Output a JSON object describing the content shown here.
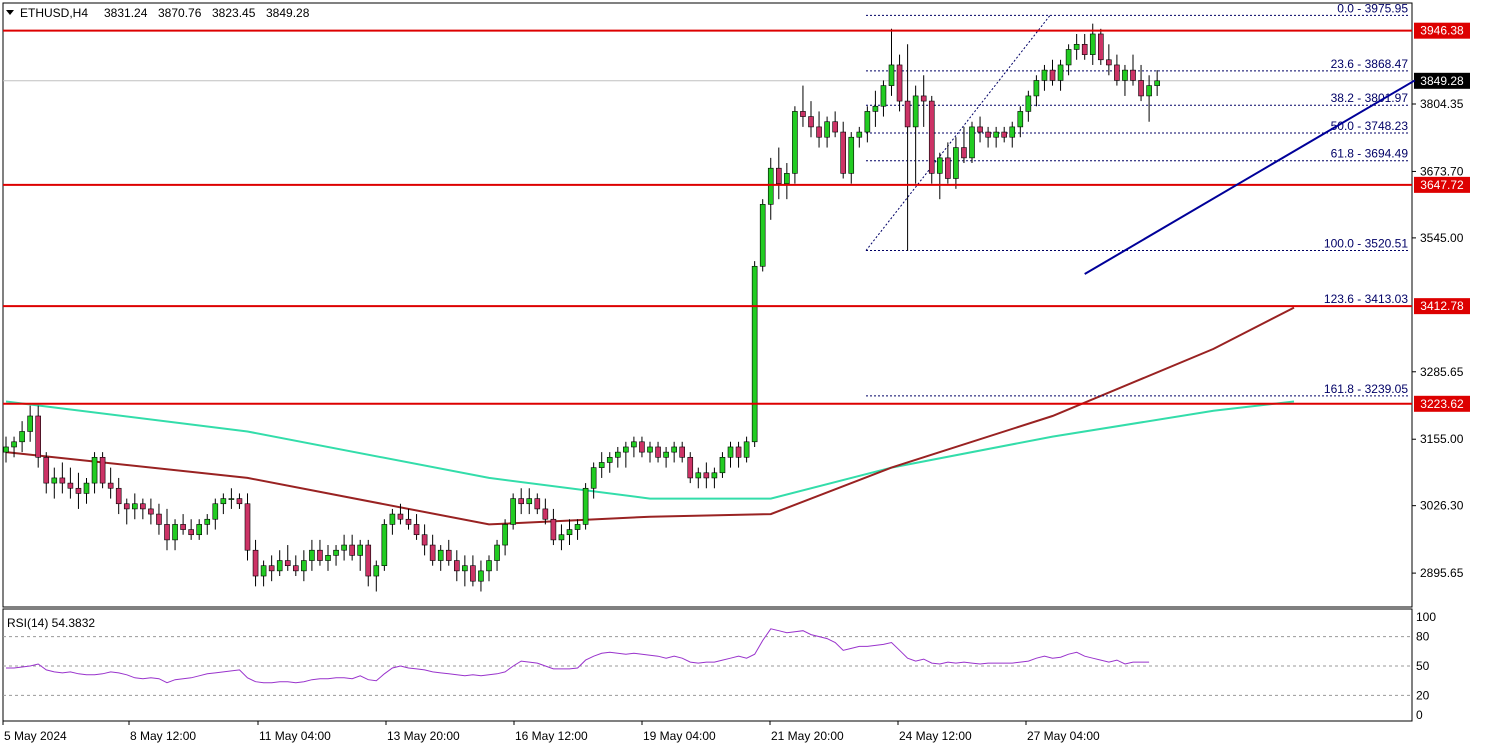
{
  "header": {
    "symbol": "ETHUSD,H4",
    "open": "3831.24",
    "high": "3870.76",
    "low": "3823.45",
    "close": "3849.28"
  },
  "rsi": {
    "label": "RSI(14) 54.3832",
    "levels": [
      "100",
      "80",
      "50",
      "20",
      "0"
    ]
  },
  "colors": {
    "bull": "#22cc22",
    "bear": "#cc3366",
    "support": "#dd0000",
    "trendline": "#000099",
    "ma_fast": "#33ddaa",
    "ma_slow": "#992222",
    "rsi": "#9933cc",
    "fib": "#000066"
  },
  "chart_data": {
    "type": "candlestick",
    "x_tick_labels": [
      "5 May 2024",
      "8 May 12:00",
      "11 May 04:00",
      "13 May 20:00",
      "16 May 12:00",
      "19 May 04:00",
      "21 May 20:00",
      "24 May 12:00",
      "27 May 04:00"
    ],
    "y_tick_labels": [
      "3804.35",
      "3673.70",
      "3545.00",
      "3285.65",
      "3155.00",
      "3026.30",
      "2895.65"
    ],
    "ylim": [
      2830,
      4000
    ],
    "horizontal_levels": [
      {
        "label": "3946.38",
        "value": 3946.38
      },
      {
        "label": "3647.72",
        "value": 3647.72
      },
      {
        "label": "3412.78",
        "value": 3412.78
      },
      {
        "label": "3223.62",
        "value": 3223.62
      }
    ],
    "current_price": {
      "label": "3849.28",
      "value": 3849.28
    },
    "fibonacci": [
      {
        "label": "0.0 - 3975.95",
        "value": 3975.95
      },
      {
        "label": "23.6 - 3868.47",
        "value": 3868.47
      },
      {
        "label": "38.2 - 3801.97",
        "value": 3801.97
      },
      {
        "label": "50.0 - 3748.23",
        "value": 3748.23
      },
      {
        "label": "61.8 - 3694.49",
        "value": 3694.49
      },
      {
        "label": "100.0 - 3520.51",
        "value": 3520.51
      },
      {
        "label": "123.6 - 3413.03",
        "value": 3413.03
      },
      {
        "label": "161.8 - 3239.05",
        "value": 3239.05
      }
    ],
    "trendline": {
      "start": [
        134,
        3475
      ],
      "end": [
        175,
        3850
      ]
    },
    "candles_ohlc": [
      [
        3130,
        3160,
        3110,
        3140
      ],
      [
        3140,
        3160,
        3120,
        3150
      ],
      [
        3150,
        3190,
        3130,
        3170
      ],
      [
        3170,
        3220,
        3150,
        3200
      ],
      [
        3200,
        3220,
        3100,
        3120
      ],
      [
        3120,
        3130,
        3050,
        3070
      ],
      [
        3070,
        3100,
        3040,
        3080
      ],
      [
        3080,
        3110,
        3050,
        3070
      ],
      [
        3070,
        3100,
        3040,
        3060
      ],
      [
        3060,
        3090,
        3020,
        3050
      ],
      [
        3050,
        3080,
        3030,
        3070
      ],
      [
        3070,
        3130,
        3050,
        3120
      ],
      [
        3120,
        3130,
        3060,
        3070
      ],
      [
        3070,
        3100,
        3040,
        3060
      ],
      [
        3060,
        3080,
        3010,
        3030
      ],
      [
        3030,
        3040,
        2990,
        3020
      ],
      [
        3020,
        3050,
        3000,
        3030
      ],
      [
        3030,
        3040,
        3000,
        3020
      ],
      [
        3020,
        3040,
        2990,
        3010
      ],
      [
        3010,
        3030,
        2970,
        2990
      ],
      [
        2990,
        3020,
        2940,
        2960
      ],
      [
        2960,
        3000,
        2940,
        2990
      ],
      [
        2990,
        3010,
        2970,
        2980
      ],
      [
        2980,
        3000,
        2960,
        2970
      ],
      [
        2970,
        3000,
        2960,
        2990
      ],
      [
        2990,
        3010,
        2970,
        3000
      ],
      [
        3000,
        3040,
        2980,
        3030
      ],
      [
        3030,
        3050,
        3010,
        3040
      ],
      [
        3040,
        3060,
        3020,
        3040
      ],
      [
        3040,
        3050,
        3020,
        3030
      ],
      [
        3030,
        3050,
        2920,
        2940
      ],
      [
        2940,
        2960,
        2870,
        2890
      ],
      [
        2890,
        2920,
        2870,
        2910
      ],
      [
        2910,
        2930,
        2880,
        2900
      ],
      [
        2900,
        2940,
        2890,
        2920
      ],
      [
        2920,
        2950,
        2900,
        2910
      ],
      [
        2910,
        2930,
        2890,
        2900
      ],
      [
        2900,
        2940,
        2880,
        2920
      ],
      [
        2920,
        2960,
        2900,
        2940
      ],
      [
        2940,
        2960,
        2910,
        2920
      ],
      [
        2920,
        2950,
        2900,
        2930
      ],
      [
        2930,
        2950,
        2910,
        2940
      ],
      [
        2940,
        2970,
        2920,
        2950
      ],
      [
        2950,
        2970,
        2920,
        2930
      ],
      [
        2930,
        2960,
        2900,
        2950
      ],
      [
        2950,
        2960,
        2870,
        2890
      ],
      [
        2890,
        2920,
        2860,
        2910
      ],
      [
        2910,
        3000,
        2900,
        2990
      ],
      [
        2990,
        3020,
        2970,
        3010
      ],
      [
        3010,
        3030,
        2990,
        3000
      ],
      [
        3000,
        3020,
        2980,
        2990
      ],
      [
        2990,
        3010,
        2960,
        2970
      ],
      [
        2970,
        2990,
        2930,
        2950
      ],
      [
        2950,
        2970,
        2910,
        2920
      ],
      [
        2920,
        2950,
        2900,
        2940
      ],
      [
        2940,
        2960,
        2910,
        2920
      ],
      [
        2920,
        2940,
        2880,
        2900
      ],
      [
        2900,
        2930,
        2870,
        2910
      ],
      [
        2910,
        2930,
        2870,
        2880
      ],
      [
        2880,
        2920,
        2860,
        2900
      ],
      [
        2900,
        2930,
        2880,
        2920
      ],
      [
        2920,
        2960,
        2900,
        2950
      ],
      [
        2950,
        3000,
        2930,
        2990
      ],
      [
        2990,
        3050,
        2980,
        3040
      ],
      [
        3040,
        3060,
        3010,
        3030
      ],
      [
        3030,
        3060,
        3010,
        3040
      ],
      [
        3040,
        3050,
        3010,
        3020
      ],
      [
        3020,
        3040,
        2990,
        3000
      ],
      [
        3000,
        3020,
        2950,
        2960
      ],
      [
        2960,
        2990,
        2940,
        2970
      ],
      [
        2970,
        3000,
        2950,
        2980
      ],
      [
        2980,
        3000,
        2960,
        2990
      ],
      [
        2990,
        3070,
        2980,
        3060
      ],
      [
        3060,
        3110,
        3040,
        3100
      ],
      [
        3100,
        3130,
        3080,
        3110
      ],
      [
        3110,
        3130,
        3090,
        3120
      ],
      [
        3120,
        3140,
        3100,
        3130
      ],
      [
        3130,
        3150,
        3100,
        3140
      ],
      [
        3140,
        3160,
        3120,
        3150
      ],
      [
        3150,
        3160,
        3120,
        3130
      ],
      [
        3130,
        3150,
        3110,
        3140
      ],
      [
        3140,
        3150,
        3110,
        3120
      ],
      [
        3120,
        3140,
        3100,
        3130
      ],
      [
        3130,
        3150,
        3110,
        3140
      ],
      [
        3140,
        3150,
        3110,
        3120
      ],
      [
        3120,
        3130,
        3070,
        3080
      ],
      [
        3080,
        3100,
        3060,
        3090
      ],
      [
        3090,
        3110,
        3060,
        3080
      ],
      [
        3080,
        3100,
        3060,
        3090
      ],
      [
        3090,
        3130,
        3080,
        3120
      ],
      [
        3120,
        3150,
        3100,
        3140
      ],
      [
        3140,
        3150,
        3100,
        3120
      ],
      [
        3120,
        3160,
        3110,
        3150
      ],
      [
        3150,
        3500,
        3140,
        3490
      ],
      [
        3490,
        3620,
        3480,
        3610
      ],
      [
        3610,
        3700,
        3580,
        3680
      ],
      [
        3680,
        3720,
        3620,
        3650
      ],
      [
        3650,
        3690,
        3620,
        3670
      ],
      [
        3670,
        3800,
        3650,
        3790
      ],
      [
        3790,
        3840,
        3760,
        3780
      ],
      [
        3780,
        3810,
        3740,
        3760
      ],
      [
        3760,
        3790,
        3720,
        3740
      ],
      [
        3740,
        3780,
        3720,
        3770
      ],
      [
        3770,
        3790,
        3740,
        3750
      ],
      [
        3750,
        3770,
        3660,
        3670
      ],
      [
        3670,
        3750,
        3650,
        3740
      ],
      [
        3740,
        3760,
        3720,
        3750
      ],
      [
        3750,
        3800,
        3730,
        3790
      ],
      [
        3790,
        3830,
        3760,
        3800
      ],
      [
        3800,
        3850,
        3780,
        3840
      ],
      [
        3840,
        3950,
        3820,
        3880
      ],
      [
        3880,
        3900,
        3790,
        3810
      ],
      [
        3810,
        3920,
        3520,
        3760
      ],
      [
        3760,
        3840,
        3650,
        3820
      ],
      [
        3820,
        3860,
        3760,
        3810
      ],
      [
        3810,
        3820,
        3650,
        3670
      ],
      [
        3670,
        3710,
        3620,
        3700
      ],
      [
        3700,
        3730,
        3650,
        3660
      ],
      [
        3660,
        3740,
        3640,
        3720
      ],
      [
        3720,
        3760,
        3690,
        3700
      ],
      [
        3700,
        3770,
        3690,
        3760
      ],
      [
        3760,
        3780,
        3730,
        3750
      ],
      [
        3750,
        3760,
        3720,
        3740
      ],
      [
        3740,
        3760,
        3720,
        3750
      ],
      [
        3750,
        3760,
        3730,
        3740
      ],
      [
        3740,
        3770,
        3720,
        3760
      ],
      [
        3760,
        3800,
        3740,
        3790
      ],
      [
        3790,
        3830,
        3770,
        3820
      ],
      [
        3820,
        3860,
        3800,
        3850
      ],
      [
        3850,
        3880,
        3830,
        3870
      ],
      [
        3870,
        3890,
        3840,
        3850
      ],
      [
        3850,
        3890,
        3830,
        3880
      ],
      [
        3880,
        3920,
        3860,
        3910
      ],
      [
        3910,
        3940,
        3890,
        3920
      ],
      [
        3920,
        3940,
        3890,
        3900
      ],
      [
        3900,
        3960,
        3880,
        3940
      ],
      [
        3940,
        3950,
        3880,
        3890
      ],
      [
        3890,
        3920,
        3860,
        3880
      ],
      [
        3880,
        3900,
        3840,
        3850
      ],
      [
        3850,
        3880,
        3820,
        3870
      ],
      [
        3870,
        3900,
        3840,
        3850
      ],
      [
        3850,
        3880,
        3810,
        3820
      ],
      [
        3820,
        3860,
        3770,
        3840
      ],
      [
        3840,
        3870,
        3820,
        3849.28
      ]
    ],
    "ma_fast": [
      [
        0,
        3228
      ],
      [
        30,
        3170
      ],
      [
        60,
        3080
      ],
      [
        80,
        3040
      ],
      [
        95,
        3040
      ],
      [
        110,
        3100
      ],
      [
        130,
        3160
      ],
      [
        150,
        3210
      ],
      [
        160,
        3228
      ]
    ],
    "ma_slow": [
      [
        0,
        3130
      ],
      [
        30,
        3080
      ],
      [
        60,
        2990
      ],
      [
        80,
        3005
      ],
      [
        95,
        3010
      ],
      [
        110,
        3100
      ],
      [
        130,
        3200
      ],
      [
        150,
        3330
      ],
      [
        160,
        3410
      ]
    ],
    "rsi_values": [
      48,
      48,
      49,
      50,
      52,
      46,
      44,
      43,
      44,
      42,
      41,
      41,
      42,
      44,
      43,
      41,
      38,
      37,
      38,
      37,
      33,
      36,
      37,
      38,
      40,
      42,
      43,
      44,
      45,
      46,
      38,
      34,
      33,
      33,
      34,
      34,
      33,
      34,
      36,
      37,
      37,
      38,
      38,
      37,
      40,
      36,
      35,
      42,
      48,
      50,
      48,
      47,
      46,
      44,
      43,
      42,
      41,
      40,
      41,
      40,
      41,
      42,
      44,
      50,
      55,
      54,
      53,
      50,
      47,
      47,
      47,
      48,
      56,
      60,
      63,
      64,
      63,
      62,
      63,
      62,
      61,
      60,
      58,
      60,
      58,
      54,
      53,
      54,
      54,
      56,
      58,
      60,
      58,
      62,
      76,
      88,
      86,
      84,
      85,
      86,
      82,
      80,
      78,
      74,
      66,
      68,
      70,
      70,
      71,
      72,
      74,
      66,
      58,
      55,
      57,
      53,
      52,
      54,
      53,
      54,
      53,
      52,
      53,
      53,
      53,
      53,
      54,
      55,
      58,
      60,
      58,
      59,
      62,
      64,
      60,
      58,
      56,
      54,
      56,
      52,
      54,
      54,
      54
    ]
  }
}
